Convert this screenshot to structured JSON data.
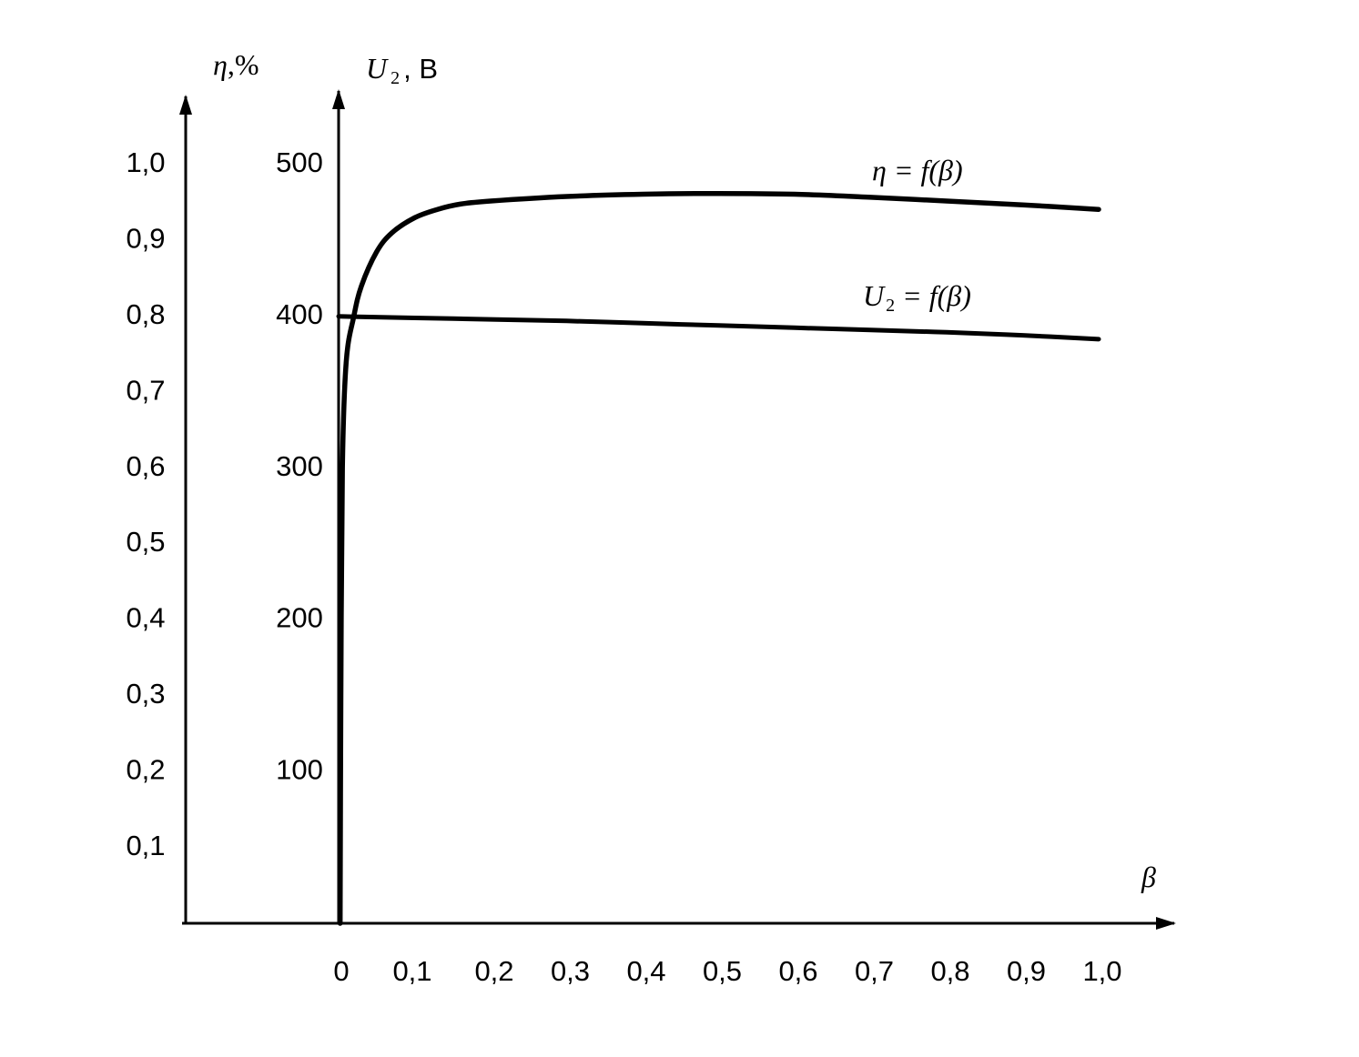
{
  "chart_data": {
    "type": "line",
    "x_axis": {
      "label": "β",
      "range": [
        0,
        1.0
      ],
      "ticks": [
        "0",
        "0,1",
        "0,2",
        "0,3",
        "0,4",
        "0,5",
        "0,6",
        "0,7",
        "0,8",
        "0,9",
        "1,0"
      ]
    },
    "y_axis_left": {
      "label_symbol": "η",
      "label_unit": ",%",
      "range": [
        0,
        1.0
      ],
      "ticks": [
        "0,1",
        "0,2",
        "0,3",
        "0,4",
        "0,5",
        "0,6",
        "0,7",
        "0,8",
        "0,9",
        "1,0"
      ]
    },
    "y_axis_right": {
      "label_symbol": "U",
      "label_sub": "2",
      "label_unit": ", В",
      "range": [
        0,
        500
      ],
      "ticks": [
        "100",
        "200",
        "300",
        "400",
        "500"
      ]
    },
    "series": [
      {
        "name_lhs": "η",
        "name_rhs": " = f(β)",
        "axis": "left",
        "points": [
          [
            0.002,
            0.0
          ],
          [
            0.003,
            0.3
          ],
          [
            0.005,
            0.6
          ],
          [
            0.01,
            0.74
          ],
          [
            0.02,
            0.8
          ],
          [
            0.03,
            0.84
          ],
          [
            0.05,
            0.885
          ],
          [
            0.07,
            0.91
          ],
          [
            0.1,
            0.93
          ],
          [
            0.13,
            0.941
          ],
          [
            0.16,
            0.948
          ],
          [
            0.2,
            0.952
          ],
          [
            0.3,
            0.958
          ],
          [
            0.4,
            0.961
          ],
          [
            0.5,
            0.962
          ],
          [
            0.6,
            0.961
          ],
          [
            0.7,
            0.957
          ],
          [
            0.8,
            0.952
          ],
          [
            0.9,
            0.947
          ],
          [
            1.0,
            0.941
          ]
        ]
      },
      {
        "name_lhs": "U",
        "name_sub": "2",
        "name_rhs": " = f(β)",
        "axis": "right",
        "points": [
          [
            0,
            400
          ],
          [
            0.1,
            399
          ],
          [
            0.2,
            398
          ],
          [
            0.3,
            397
          ],
          [
            0.4,
            395.5
          ],
          [
            0.5,
            394
          ],
          [
            0.6,
            392.5
          ],
          [
            0.7,
            391
          ],
          [
            0.8,
            389.5
          ],
          [
            0.9,
            387.5
          ],
          [
            1.0,
            385
          ]
        ]
      }
    ],
    "grid": false,
    "legend": "inline labels above curves"
  }
}
